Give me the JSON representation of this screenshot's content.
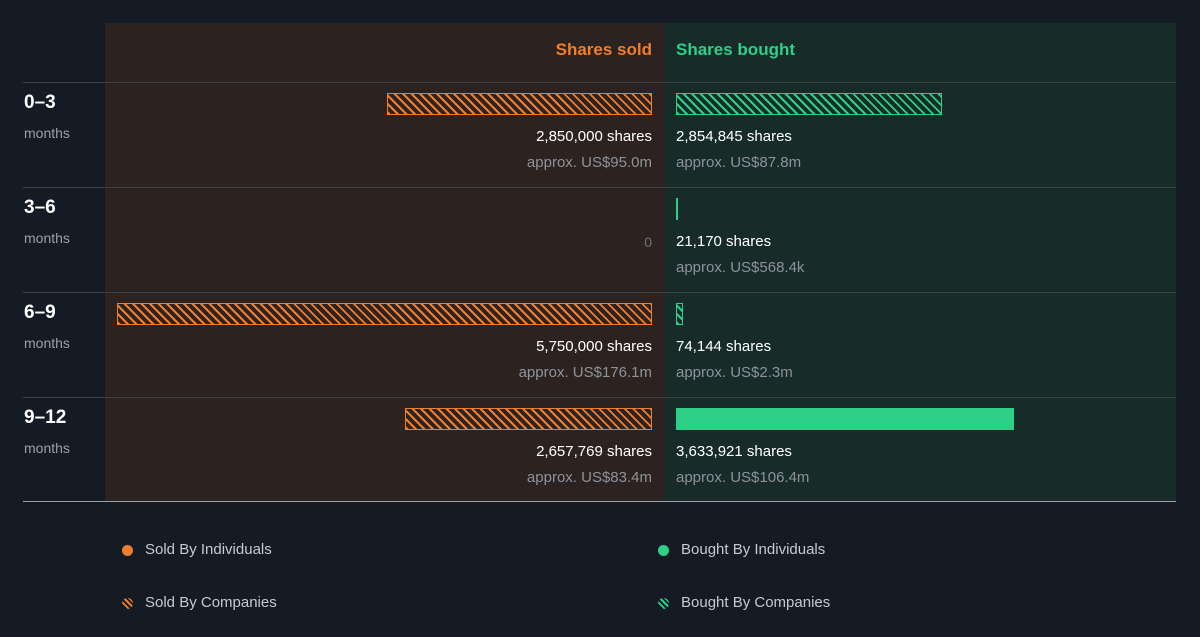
{
  "headers": {
    "sold": "Shares sold",
    "bought": "Shares bought"
  },
  "colors": {
    "sold": "#f07e2a",
    "bought": "#2ecf86",
    "background": "#151b24"
  },
  "legend": [
    {
      "label": "Sold By Individuals",
      "style": "solid",
      "color": "#f07e2a"
    },
    {
      "label": "Sold By Companies",
      "style": "hatched",
      "color": "#f07e2a"
    },
    {
      "label": "Bought By Individuals",
      "style": "solid",
      "color": "#2ecf86"
    },
    {
      "label": "Bought By Companies",
      "style": "hatched",
      "color": "#2ecf86"
    }
  ],
  "chart_data": {
    "type": "bar",
    "orientation": "horizontal-diverging",
    "categories": [
      {
        "range": "0–3",
        "unit": "months"
      },
      {
        "range": "3–6",
        "unit": "months"
      },
      {
        "range": "6–9",
        "unit": "months"
      },
      {
        "range": "9–12",
        "unit": "months"
      }
    ],
    "series": [
      {
        "name": "Shares sold",
        "values": [
          2850000,
          0,
          5750000,
          2657769
        ],
        "shares_labels": [
          "2,850,000 shares",
          "",
          "5,750,000 shares",
          "2,657,769 shares"
        ],
        "value_labels": [
          "approx. US$95.0m",
          "",
          "approx. US$176.1m",
          "approx. US$83.4m"
        ],
        "zero_labels": [
          "",
          "0",
          "",
          ""
        ],
        "buyer_type": [
          "companies",
          "",
          "companies",
          "companies"
        ]
      },
      {
        "name": "Shares bought",
        "values": [
          2854845,
          21170,
          74144,
          3633921
        ],
        "shares_labels": [
          "2,854,845 shares",
          "21,170 shares",
          "74,144 shares",
          "3,633,921 shares"
        ],
        "value_labels": [
          "approx. US$87.8m",
          "approx. US$568.4k",
          "approx. US$2.3m",
          "approx. US$106.4m"
        ],
        "buyer_type": [
          "companies",
          "individuals",
          "companies",
          "individuals"
        ]
      }
    ]
  }
}
